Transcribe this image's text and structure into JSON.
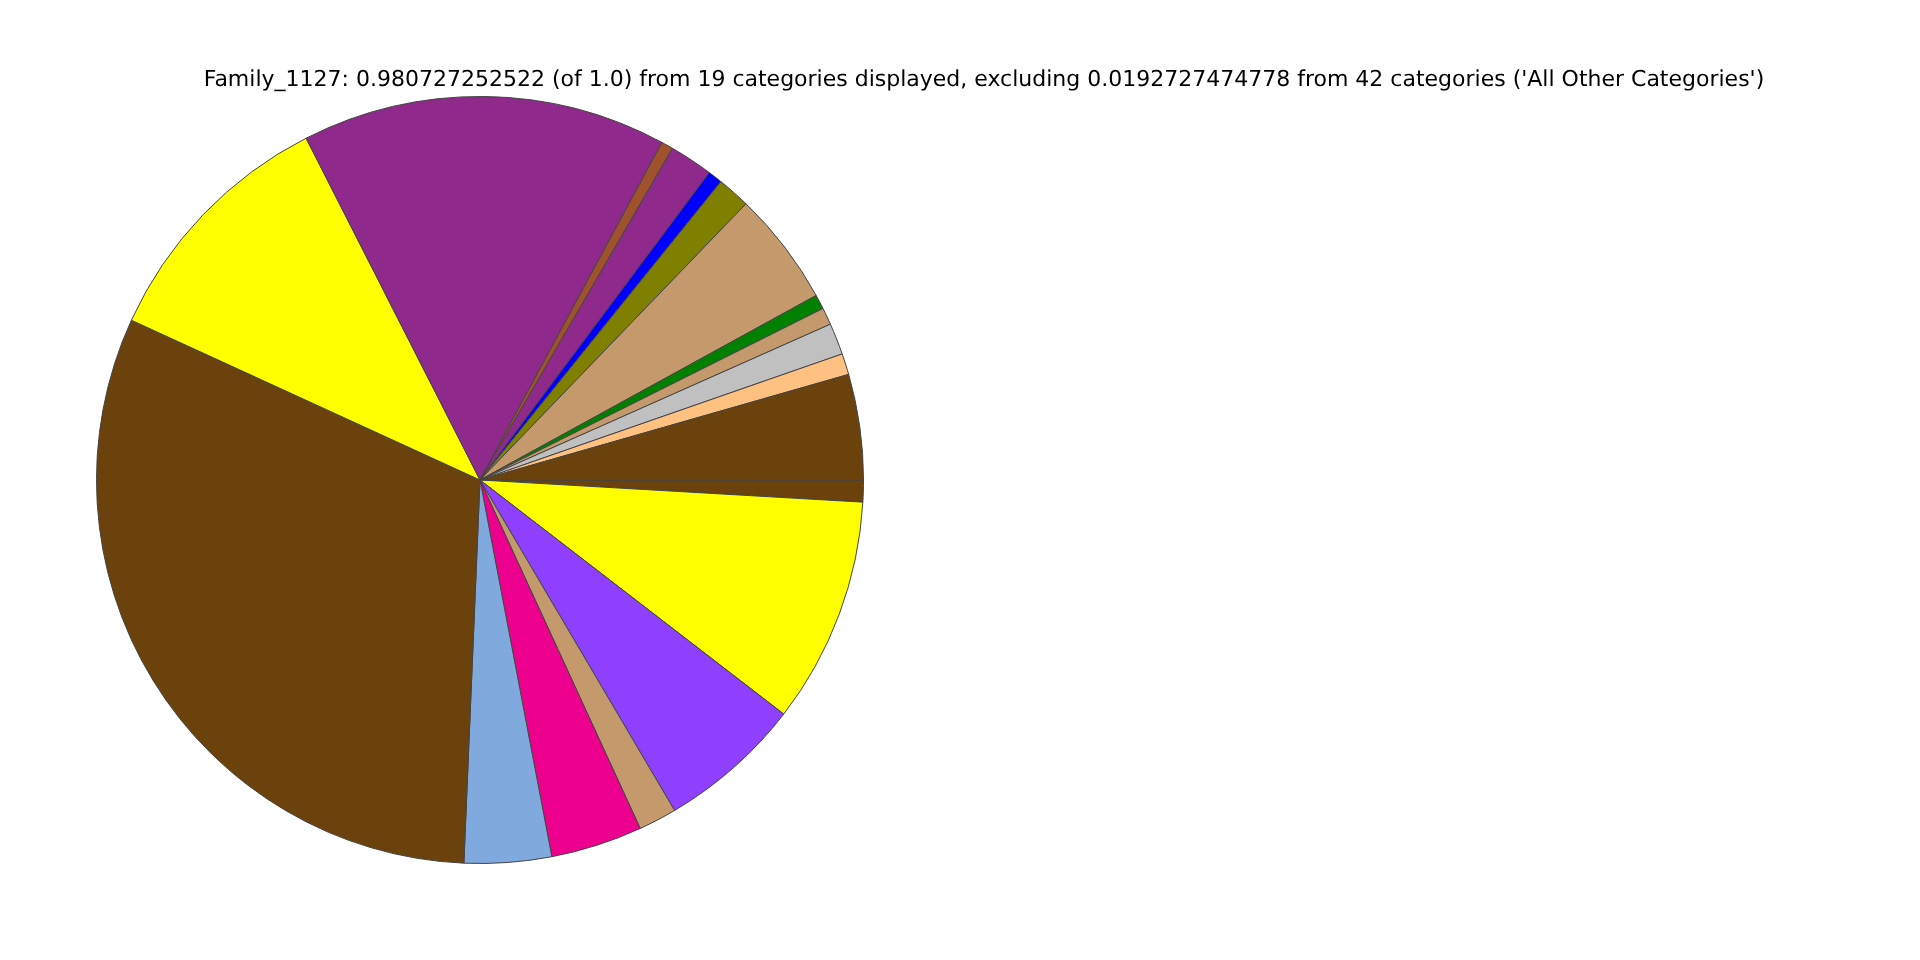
{
  "chart_data": {
    "type": "pie",
    "title": "Family_1127: 0.980727252522 (of 1.0) from 19 categories displayed, excluding 0.0192727474778 from 42 categories ('All Other Categories')",
    "categories": [
      null,
      null,
      null,
      null,
      null,
      null,
      null,
      null,
      null,
      null,
      null,
      null,
      null,
      null,
      null,
      null,
      null,
      null,
      null
    ],
    "values": [
      0.92,
      9.53,
      6.08,
      1.61,
      3.86,
      3.67,
      31.17,
      10.67,
      15.36,
      0.5,
      1.83,
      0.61,
      1.39,
      4.81,
      0.61,
      0.72,
      1.33,
      0.89,
      4.44
    ],
    "colors": [
      "#6b420b",
      "#ffff00",
      "#8f40ff",
      "#c49a6c",
      "#ee008f",
      "#80aadd",
      "#6b420b",
      "#ffff00",
      "#8f298c",
      "#a0522d",
      "#8f298c",
      "#0000ff",
      "#808000",
      "#c49a6c",
      "#008000",
      "#c49a6c",
      "#c0c0c0",
      "#ffc080",
      "#6b420b"
    ],
    "legend": false
  }
}
